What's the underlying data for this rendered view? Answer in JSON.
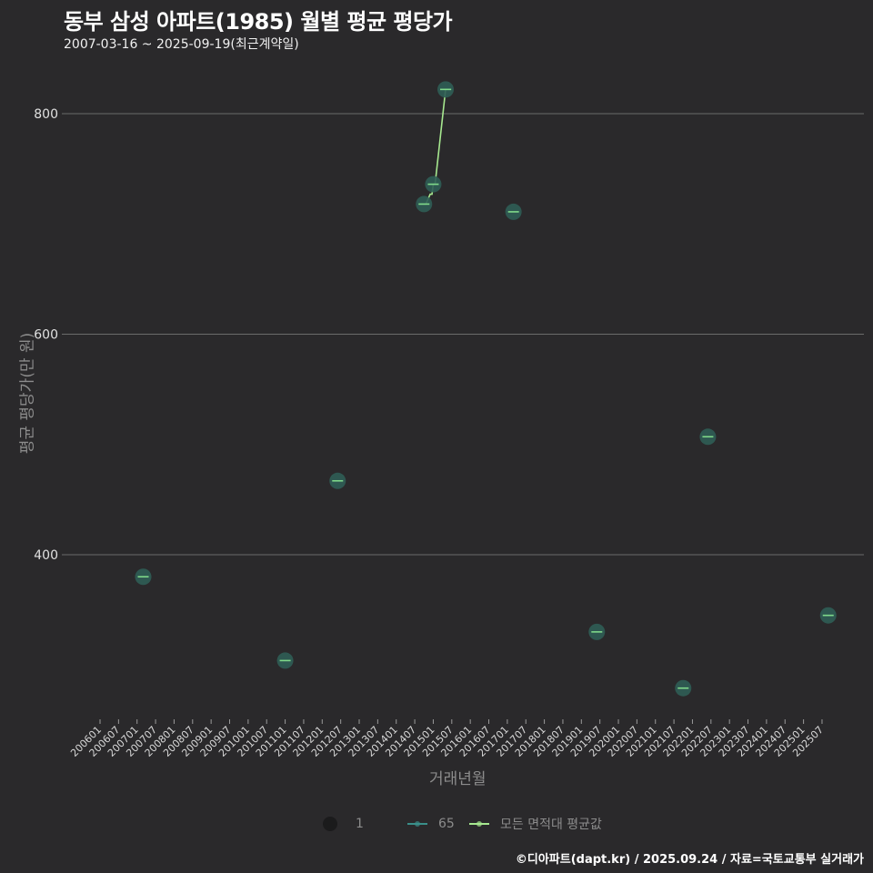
{
  "header": {
    "title": "동부 삼성 아파트(1985) 월별 평균 평당가",
    "subtitle": "2007-03-16 ~ 2025-09-19(최근계약일)"
  },
  "axes": {
    "ylabel": "평균 평당가(만 원)",
    "xlabel": "거래년월"
  },
  "legend": {
    "size_label": "1",
    "area_label": "65",
    "avg_label": "모든 면적대 평균값"
  },
  "footer": "©디아파트(dapt.kr) / 2025.09.24 / 자료=국토교통부 실거래가",
  "colors": {
    "background": "#2a292b",
    "point_fill": "#2f5d55",
    "point_line": "#7fd98a",
    "avg_line": "#a6e88f",
    "area_line": "#3a8f8a",
    "grid": "#6b6b6b"
  },
  "chart_data": {
    "type": "scatter",
    "title": "동부 삼성 아파트(1985) 월별 평균 평당가",
    "subtitle": "2007-03-16 ~ 2025-09-19(최근계약일)",
    "xlabel": "거래년월",
    "ylabel": "평균 평당가(만 원)",
    "ylim": [
      270,
      830
    ],
    "yticks": [
      400,
      600,
      800
    ],
    "grid": true,
    "legend_position": "bottom",
    "x_ticks": [
      "200601",
      "200607",
      "200701",
      "200707",
      "200801",
      "200807",
      "200901",
      "200907",
      "201001",
      "201007",
      "201101",
      "201107",
      "201201",
      "201207",
      "201301",
      "201307",
      "201401",
      "201407",
      "201501",
      "201507",
      "201601",
      "201607",
      "201701",
      "201707",
      "201801",
      "201807",
      "201901",
      "201907",
      "202001",
      "202007",
      "202101",
      "202107",
      "202201",
      "202207",
      "202301",
      "202307",
      "202401",
      "202407",
      "202501",
      "202507"
    ],
    "series": [
      {
        "name": "65",
        "type": "scatter",
        "points": [
          {
            "x": "200703",
            "y": 380
          },
          {
            "x": "201101",
            "y": 304
          },
          {
            "x": "201206",
            "y": 467
          },
          {
            "x": "201410",
            "y": 718
          },
          {
            "x": "201501",
            "y": 736
          },
          {
            "x": "201505",
            "y": 822
          },
          {
            "x": "201703",
            "y": 711
          },
          {
            "x": "201906",
            "y": 330
          },
          {
            "x": "202110",
            "y": 279
          },
          {
            "x": "202206",
            "y": 507
          },
          {
            "x": "202509",
            "y": 345
          }
        ]
      },
      {
        "name": "모든 면적대 평균값",
        "type": "step-line",
        "points": [
          {
            "x": "201410",
            "y": 718
          },
          {
            "x": "201412",
            "y": 727
          },
          {
            "x": "201501",
            "y": 736
          },
          {
            "x": "201505",
            "y": 822
          }
        ]
      }
    ]
  }
}
